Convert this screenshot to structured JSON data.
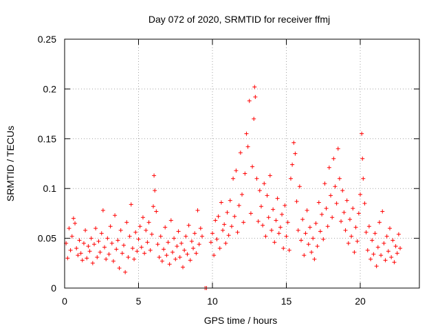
{
  "chart_data": {
    "type": "scatter",
    "title": "Day 072 of 2020, SRMTID for receiver ffmj",
    "xlabel": "GPS time / hours",
    "ylabel": "SRMTID / TECUs",
    "xlim": [
      0,
      24
    ],
    "ylim": [
      0,
      0.25
    ],
    "x_ticks": [
      0,
      5,
      10,
      15,
      20
    ],
    "x_tick_labels": [
      "0",
      "5",
      "10",
      "15",
      "20"
    ],
    "y_ticks": [
      0,
      0.05,
      0.1,
      0.15,
      0.2,
      0.25
    ],
    "y_tick_labels": [
      "0",
      "0.05",
      "0.1",
      "0.15",
      "0.2",
      "0.25"
    ],
    "grid": true,
    "marker": "+",
    "marker_color": "#ff0000",
    "series": [
      {
        "name": "SRMTID",
        "points": [
          [
            0.1,
            0.045
          ],
          [
            0.2,
            0.03
          ],
          [
            0.3,
            0.06
          ],
          [
            0.4,
            0.038
          ],
          [
            0.5,
            0.052
          ],
          [
            0.6,
            0.07
          ],
          [
            0.7,
            0.065
          ],
          [
            0.8,
            0.04
          ],
          [
            0.9,
            0.033
          ],
          [
            1.0,
            0.048
          ],
          [
            1.1,
            0.035
          ],
          [
            1.2,
            0.028
          ],
          [
            1.3,
            0.045
          ],
          [
            1.4,
            0.058
          ],
          [
            1.5,
            0.03
          ],
          [
            1.6,
            0.042
          ],
          [
            1.7,
            0.037
          ],
          [
            1.8,
            0.05
          ],
          [
            1.9,
            0.025
          ],
          [
            2.0,
            0.044
          ],
          [
            2.1,
            0.06
          ],
          [
            2.2,
            0.031
          ],
          [
            2.3,
            0.047
          ],
          [
            2.4,
            0.036
          ],
          [
            2.5,
            0.055
          ],
          [
            2.6,
            0.078
          ],
          [
            2.7,
            0.041
          ],
          [
            2.8,
            0.029
          ],
          [
            2.9,
            0.05
          ],
          [
            3.0,
            0.034
          ],
          [
            3.1,
            0.062
          ],
          [
            3.2,
            0.045
          ],
          [
            3.3,
            0.027
          ],
          [
            3.4,
            0.073
          ],
          [
            3.5,
            0.039
          ],
          [
            3.6,
            0.048
          ],
          [
            3.7,
            0.02
          ],
          [
            3.8,
            0.058
          ],
          [
            3.9,
            0.035
          ],
          [
            4.0,
            0.043
          ],
          [
            4.1,
            0.016
          ],
          [
            4.2,
            0.066
          ],
          [
            4.3,
            0.031
          ],
          [
            4.4,
            0.052
          ],
          [
            4.5,
            0.084
          ],
          [
            4.6,
            0.04
          ],
          [
            4.7,
            0.029
          ],
          [
            4.8,
            0.056
          ],
          [
            4.9,
            0.037
          ],
          [
            5.0,
            0.049
          ],
          [
            5.1,
            0.062
          ],
          [
            5.2,
            0.041
          ],
          [
            5.3,
            0.071
          ],
          [
            5.4,
            0.035
          ],
          [
            5.5,
            0.058
          ],
          [
            5.6,
            0.046
          ],
          [
            5.7,
            0.066
          ],
          [
            5.8,
            0.038
          ],
          [
            5.9,
            0.054
          ],
          [
            6.0,
            0.082
          ],
          [
            6.05,
            0.113
          ],
          [
            6.1,
            0.098
          ],
          [
            6.2,
            0.077
          ],
          [
            6.3,
            0.044
          ],
          [
            6.4,
            0.031
          ],
          [
            6.5,
            0.052
          ],
          [
            6.6,
            0.027
          ],
          [
            6.7,
            0.039
          ],
          [
            6.8,
            0.061
          ],
          [
            6.9,
            0.033
          ],
          [
            7.0,
            0.046
          ],
          [
            7.1,
            0.024
          ],
          [
            7.2,
            0.068
          ],
          [
            7.3,
            0.036
          ],
          [
            7.4,
            0.05
          ],
          [
            7.5,
            0.029
          ],
          [
            7.6,
            0.042
          ],
          [
            7.7,
            0.057
          ],
          [
            7.8,
            0.031
          ],
          [
            7.9,
            0.045
          ],
          [
            8.0,
            0.021
          ],
          [
            8.1,
            0.038
          ],
          [
            8.2,
            0.052
          ],
          [
            8.3,
            0.034
          ],
          [
            8.4,
            0.063
          ],
          [
            8.5,
            0.028
          ],
          [
            8.6,
            0.047
          ],
          [
            8.7,
            0.04
          ],
          [
            8.8,
            0.055
          ],
          [
            8.9,
            0.035
          ],
          [
            9.0,
            0.078
          ],
          [
            9.1,
            0.044
          ],
          [
            9.2,
            0.06
          ],
          [
            9.3,
            0.052
          ],
          [
            9.5,
            0.0
          ],
          [
            9.6,
            0.0
          ],
          [
            9.9,
            0.046
          ],
          [
            10.0,
            0.055
          ],
          [
            10.1,
            0.033
          ],
          [
            10.2,
            0.068
          ],
          [
            10.3,
            0.049
          ],
          [
            10.4,
            0.072
          ],
          [
            10.5,
            0.04
          ],
          [
            10.6,
            0.086
          ],
          [
            10.7,
            0.058
          ],
          [
            10.8,
            0.064
          ],
          [
            10.9,
            0.045
          ],
          [
            11.0,
            0.076
          ],
          [
            11.1,
            0.053
          ],
          [
            11.2,
            0.088
          ],
          [
            11.3,
            0.062
          ],
          [
            11.4,
            0.11
          ],
          [
            11.5,
            0.072
          ],
          [
            11.6,
            0.118
          ],
          [
            11.7,
            0.056
          ],
          [
            11.8,
            0.083
          ],
          [
            11.9,
            0.136
          ],
          [
            12.0,
            0.094
          ],
          [
            12.1,
            0.066
          ],
          [
            12.2,
            0.115
          ],
          [
            12.3,
            0.155
          ],
          [
            12.4,
            0.142
          ],
          [
            12.5,
            0.188
          ],
          [
            12.6,
            0.075
          ],
          [
            12.7,
            0.122
          ],
          [
            12.8,
            0.17
          ],
          [
            12.85,
            0.202
          ],
          [
            12.9,
            0.192
          ],
          [
            13.0,
            0.11
          ],
          [
            13.1,
            0.067
          ],
          [
            13.2,
            0.098
          ],
          [
            13.3,
            0.082
          ],
          [
            13.4,
            0.063
          ],
          [
            13.5,
            0.105
          ],
          [
            13.6,
            0.052
          ],
          [
            13.7,
            0.093
          ],
          [
            13.8,
            0.071
          ],
          [
            13.9,
            0.113
          ],
          [
            14.0,
            0.058
          ],
          [
            14.1,
            0.079
          ],
          [
            14.2,
            0.046
          ],
          [
            14.3,
            0.068
          ],
          [
            14.4,
            0.09
          ],
          [
            14.5,
            0.055
          ],
          [
            14.6,
            0.061
          ],
          [
            14.7,
            0.074
          ],
          [
            14.8,
            0.04
          ],
          [
            14.9,
            0.083
          ],
          [
            15.0,
            0.052
          ],
          [
            15.1,
            0.066
          ],
          [
            15.2,
            0.038
          ],
          [
            15.3,
            0.11
          ],
          [
            15.4,
            0.124
          ],
          [
            15.5,
            0.146
          ],
          [
            15.6,
            0.135
          ],
          [
            15.7,
            0.087
          ],
          [
            15.8,
            0.058
          ],
          [
            15.9,
            0.102
          ],
          [
            16.0,
            0.048
          ],
          [
            16.1,
            0.069
          ],
          [
            16.2,
            0.033
          ],
          [
            16.3,
            0.055
          ],
          [
            16.4,
            0.078
          ],
          [
            16.5,
            0.044
          ],
          [
            16.6,
            0.061
          ],
          [
            16.7,
            0.036
          ],
          [
            16.8,
            0.05
          ],
          [
            16.9,
            0.029
          ],
          [
            17.0,
            0.065
          ],
          [
            17.1,
            0.042
          ],
          [
            17.2,
            0.086
          ],
          [
            17.3,
            0.057
          ],
          [
            17.4,
            0.074
          ],
          [
            17.5,
            0.049
          ],
          [
            17.6,
            0.105
          ],
          [
            17.7,
            0.08
          ],
          [
            17.8,
            0.062
          ],
          [
            17.9,
            0.121
          ],
          [
            18.0,
            0.093
          ],
          [
            18.1,
            0.071
          ],
          [
            18.2,
            0.13
          ],
          [
            18.3,
            0.102
          ],
          [
            18.4,
            0.085
          ],
          [
            18.5,
            0.14
          ],
          [
            18.6,
            0.11
          ],
          [
            18.7,
            0.067
          ],
          [
            18.8,
            0.098
          ],
          [
            18.9,
            0.076
          ],
          [
            19.0,
            0.058
          ],
          [
            19.1,
            0.088
          ],
          [
            19.2,
            0.045
          ],
          [
            19.3,
            0.069
          ],
          [
            19.4,
            0.052
          ],
          [
            19.5,
            0.08
          ],
          [
            19.6,
            0.036
          ],
          [
            19.7,
            0.061
          ],
          [
            19.8,
            0.047
          ],
          [
            19.9,
            0.075
          ],
          [
            20.0,
            0.094
          ],
          [
            20.1,
            0.155
          ],
          [
            20.15,
            0.13
          ],
          [
            20.2,
            0.11
          ],
          [
            20.3,
            0.085
          ],
          [
            20.4,
            0.056
          ],
          [
            20.5,
            0.038
          ],
          [
            20.6,
            0.062
          ],
          [
            20.7,
            0.029
          ],
          [
            20.8,
            0.048
          ],
          [
            20.9,
            0.034
          ],
          [
            21.0,
            0.055
          ],
          [
            21.1,
            0.022
          ],
          [
            21.2,
            0.041
          ],
          [
            21.3,
            0.066
          ],
          [
            21.4,
            0.033
          ],
          [
            21.5,
            0.077
          ],
          [
            21.6,
            0.045
          ],
          [
            21.7,
            0.028
          ],
          [
            21.8,
            0.052
          ],
          [
            21.9,
            0.037
          ],
          [
            22.0,
            0.06
          ],
          [
            22.1,
            0.031
          ],
          [
            22.2,
            0.048
          ],
          [
            22.3,
            0.026
          ],
          [
            22.4,
            0.042
          ],
          [
            22.5,
            0.035
          ],
          [
            22.6,
            0.054
          ],
          [
            22.7,
            0.04
          ]
        ]
      }
    ]
  }
}
